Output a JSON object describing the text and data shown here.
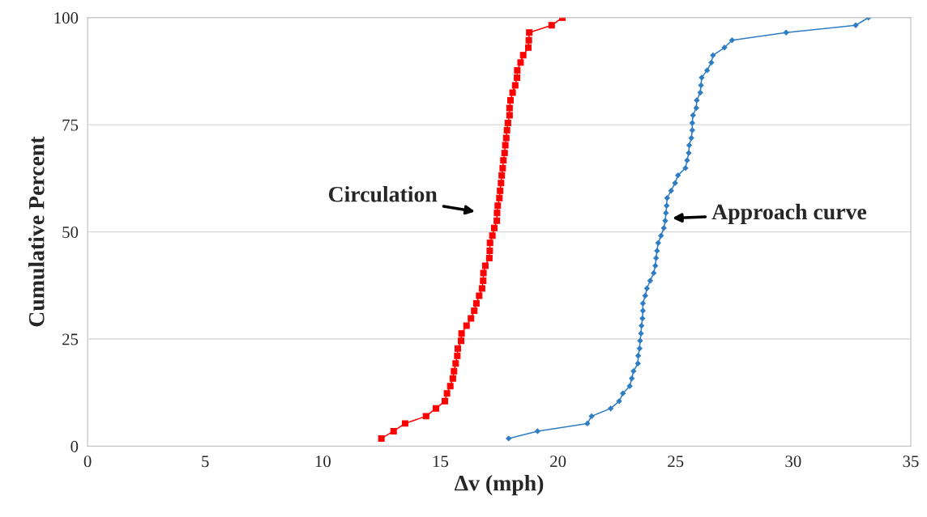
{
  "chart_data": {
    "type": "line",
    "xlabel": "Δv (mph)",
    "ylabel": "Cumulative Percent",
    "xlim": [
      0,
      35
    ],
    "xticks": [
      0,
      5,
      10,
      15,
      20,
      25,
      30,
      35
    ],
    "ylim": [
      0,
      100
    ],
    "yticks": [
      0,
      25,
      50,
      75,
      100
    ],
    "grid": "y",
    "series": [
      {
        "color": "#ff0000",
        "marker": "square",
        "line_style": "solid",
        "x": [
          12.49,
          13.01,
          13.5,
          14.39,
          14.81,
          15.19,
          15.28,
          15.42,
          15.53,
          15.58,
          15.65,
          15.72,
          15.74,
          15.88,
          15.9,
          16.11,
          16.3,
          16.44,
          16.53,
          16.65,
          16.77,
          16.82,
          16.83,
          16.91,
          17.08,
          17.1,
          17.11,
          17.21,
          17.29,
          17.4,
          17.41,
          17.44,
          17.51,
          17.54,
          17.58,
          17.61,
          17.65,
          17.68,
          17.73,
          17.76,
          17.8,
          17.83,
          17.87,
          17.94,
          17.94,
          17.98,
          18.07,
          18.18,
          18.26,
          18.27,
          18.41,
          18.52,
          18.74,
          18.76,
          18.78,
          19.73,
          20.19
        ],
        "values": [
          1.8,
          3.5,
          5.3,
          7.0,
          8.8,
          10.5,
          12.3,
          14.0,
          15.8,
          17.5,
          19.3,
          21.1,
          22.8,
          24.6,
          26.3,
          28.1,
          29.8,
          31.6,
          33.3,
          35.1,
          36.8,
          38.6,
          40.4,
          42.1,
          43.9,
          45.6,
          47.4,
          49.1,
          50.9,
          52.6,
          54.4,
          56.1,
          57.9,
          59.6,
          61.4,
          63.2,
          64.9,
          66.7,
          68.4,
          70.2,
          71.9,
          73.7,
          75.4,
          77.2,
          78.9,
          80.7,
          82.5,
          84.2,
          86.0,
          87.7,
          89.5,
          91.2,
          93.0,
          94.7,
          96.5,
          98.2,
          100
        ]
      },
      {
        "color": "#2e7dc4",
        "marker": "diamond",
        "line_style": "solid",
        "x": [
          17.9,
          19.13,
          21.25,
          21.43,
          22.24,
          22.6,
          22.76,
          23.05,
          23.14,
          23.21,
          23.4,
          23.41,
          23.47,
          23.49,
          23.53,
          23.55,
          23.59,
          23.61,
          23.61,
          23.71,
          23.78,
          23.92,
          24.07,
          24.14,
          24.17,
          24.21,
          24.26,
          24.38,
          24.5,
          24.56,
          24.59,
          24.62,
          24.64,
          24.81,
          24.98,
          25.1,
          25.42,
          25.49,
          25.56,
          25.58,
          25.67,
          25.71,
          25.71,
          25.74,
          25.88,
          25.9,
          26.05,
          26.08,
          26.11,
          26.34,
          26.52,
          26.59,
          27.08,
          27.4,
          29.7,
          32.66,
          33.2
        ],
        "values": [
          1.8,
          3.5,
          5.3,
          7.0,
          8.8,
          10.5,
          12.3,
          14.0,
          15.8,
          17.5,
          19.3,
          21.1,
          22.8,
          24.6,
          26.3,
          28.1,
          29.8,
          31.6,
          33.3,
          35.1,
          36.8,
          38.6,
          40.4,
          42.1,
          43.9,
          45.6,
          47.4,
          49.1,
          50.9,
          52.6,
          54.4,
          56.1,
          57.9,
          59.6,
          61.4,
          63.2,
          64.9,
          66.7,
          68.4,
          70.2,
          71.9,
          73.7,
          75.4,
          77.2,
          78.9,
          80.7,
          82.5,
          84.2,
          86.0,
          87.7,
          89.5,
          91.2,
          93.0,
          94.7,
          96.5,
          98.2,
          100
        ]
      }
    ],
    "annotations": [
      "Circulation",
      "Approach curve"
    ]
  }
}
